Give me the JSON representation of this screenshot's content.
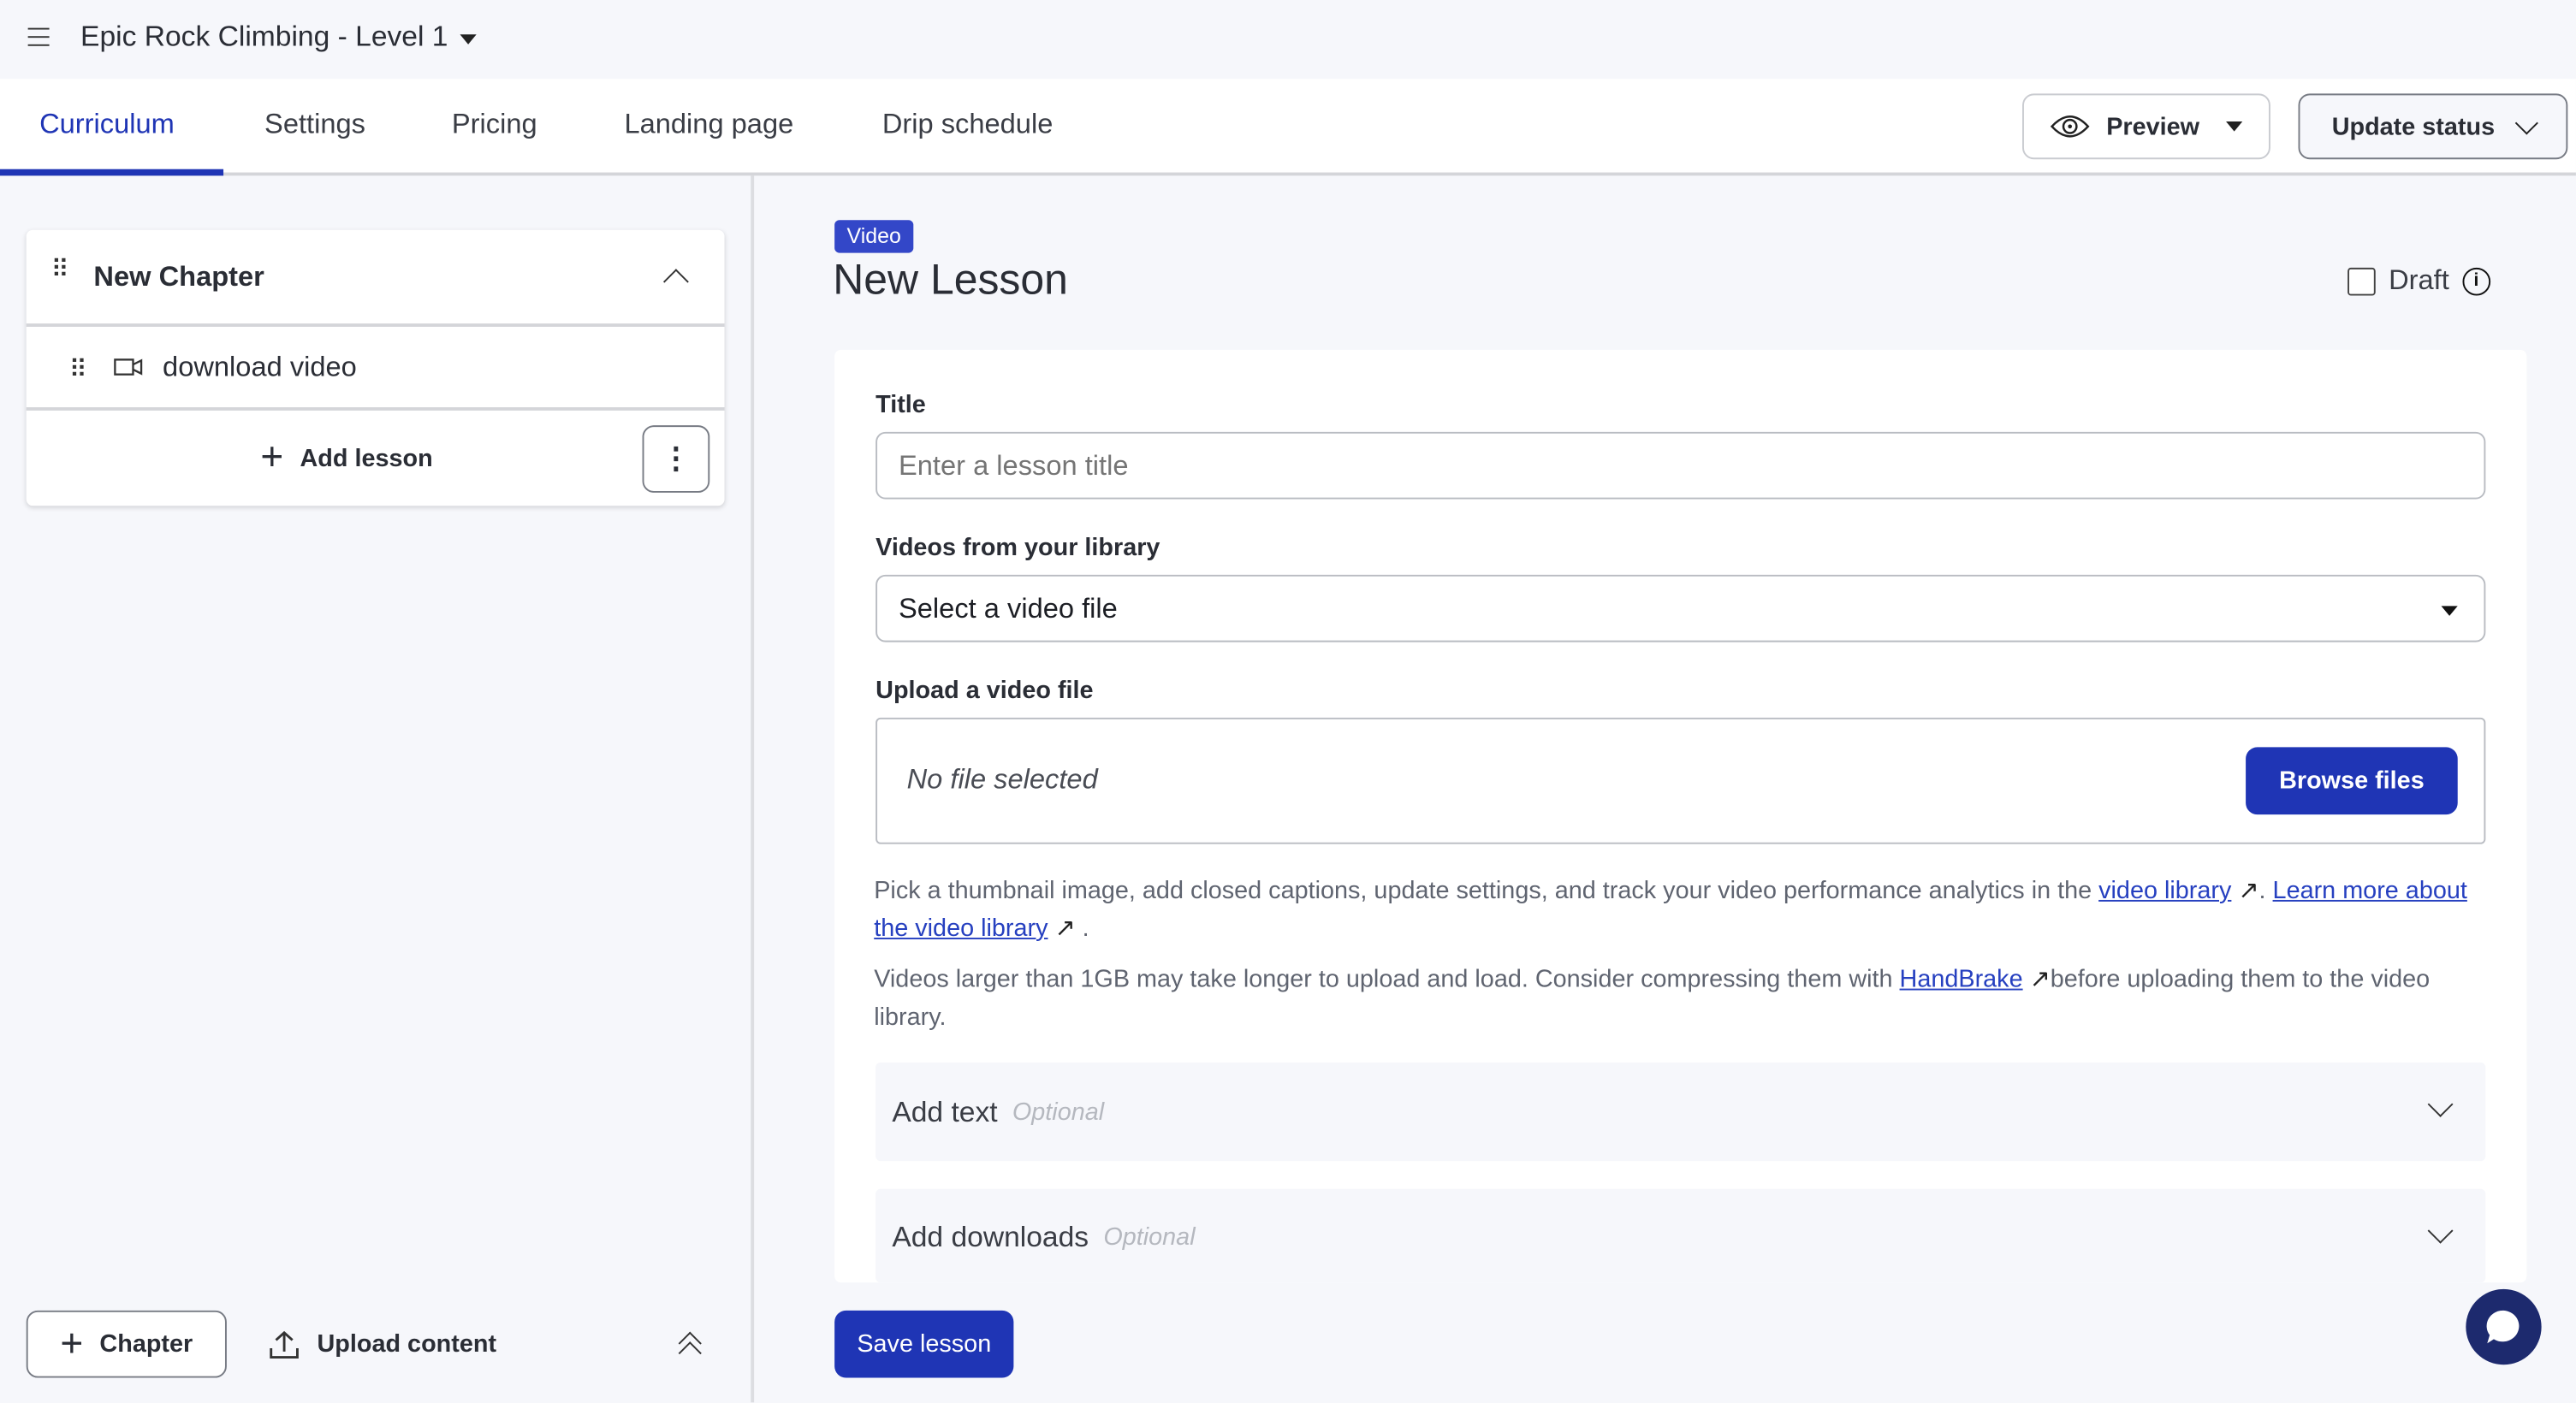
{
  "header": {
    "title": "Epic Rock Climbing - Level 1",
    "menu_icon": "hamburger-icon"
  },
  "tabs": [
    {
      "label": "Curriculum",
      "active": true
    },
    {
      "label": "Settings"
    },
    {
      "label": "Pricing"
    },
    {
      "label": "Landing page"
    },
    {
      "label": "Drip schedule"
    }
  ],
  "actions": {
    "preview": "Preview",
    "update_status": "Update status"
  },
  "curriculum": {
    "chapter": {
      "title": "New Chapter",
      "lessons": [
        {
          "title": "download video",
          "type": "video"
        }
      ]
    },
    "add_lesson": "Add lesson",
    "add_chapter": "Chapter",
    "upload_content": "Upload content"
  },
  "lesson": {
    "badge": "Video",
    "title": "New Lesson",
    "draft_label": "Draft",
    "draft_checked": false,
    "title_label": "Title",
    "title_placeholder": "Enter a lesson title",
    "library_label": "Videos from your library",
    "library_selected": "Select a video file",
    "upload_label": "Upload a video file",
    "no_file": "No file selected",
    "browse": "Browse files",
    "help1_pre": "Pick a thumbnail image, add closed captions, update settings, and track your video performance analytics in the ",
    "help1_link1": "video library",
    "help1_mid": ". ",
    "help1_link2": "Learn more about the video library",
    "help1_end": ".",
    "help2_pre": "Videos larger than 1GB may take longer to upload and load. Consider compressing them with ",
    "help2_link": "HandBrake",
    "help2_end": "before uploading them to the video library.",
    "add_text": "Add text",
    "add_downloads": "Add downloads",
    "optional": "Optional",
    "save": "Save lesson"
  },
  "colors": {
    "accent": "#1f35b5",
    "badge": "#3347c8",
    "chat": "#1d2a6e"
  }
}
